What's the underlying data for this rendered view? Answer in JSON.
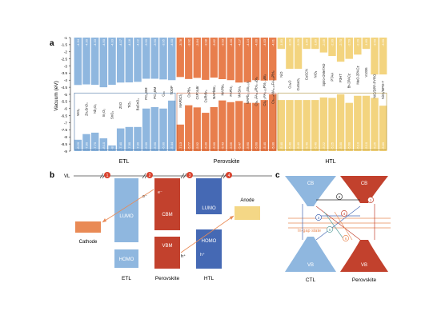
{
  "panel_a": {
    "letter": "a",
    "y_axis_label": "Vacuum (eV)",
    "y_ticks": [
      "-1",
      "-1.5",
      "-2",
      "-2.5",
      "-3",
      "-3.5",
      "-4",
      "-4.5",
      "-5",
      "-5.5",
      "-6",
      "-6.5",
      "-7",
      "-7.5",
      "-8",
      "-8.5",
      "-9"
    ],
    "group_labels": {
      "etl": "ETL",
      "perovskite": "Perovskite",
      "htl": "HTL"
    },
    "colors": {
      "etl": "#8fb7df",
      "perovskite": "#e87e4d",
      "htl": "#f3d47f",
      "etl_text": "#2b5d95",
      "per_text": "#b4441a",
      "htl_text": "#9c7a14"
    }
  },
  "chart_data": {
    "type": "bar",
    "title": "",
    "ylabel": "Vacuum (eV)",
    "ylim": [
      -9,
      -1
    ],
    "groups": [
      {
        "name": "ETL",
        "materials": [
          "WOₓ",
          "Zn₂SnO₄",
          "Nb₂O₅",
          "In₂O₃",
          "SnO₂",
          "ZnO",
          "TiO₂",
          "BaSnO₃",
          "PC₆₁BM",
          "PC₇₁BM",
          "C₆₀",
          "TDDP"
        ],
        "top_levels": [
          -4.34,
          -4.3,
          -4.33,
          -4.5,
          -4.33,
          -4.17,
          -4.16,
          -4.12,
          -3.9,
          -3.9,
          -3.95,
          -4.0
        ],
        "bottom_levels": [
          -8.2,
          -7.8,
          -7.7,
          -8.1,
          -8.6,
          -7.4,
          -7.3,
          -7.3,
          -6.0,
          -5.9,
          -6.0,
          -5.44
        ]
      },
      {
        "name": "Perovskite",
        "materials": [
          "MAPbCl₃",
          "CsPbI₃",
          "CsPbI₂Br",
          "CsPbBr₃",
          "MAPbBr₃",
          "MAPbI₃",
          "FAPbI₃",
          "MASnI₃",
          "MAPb₀.₅Sn₀.₅I₃",
          "Cs₀.₁FA₀.₉PbI₃₋ₓBrₓ",
          "Cs₀.₁₇FA₀.₈₃PbI₃₋ₓBrₓ",
          "Cs₀.₀₅MA₀.₁₅FA₀.₈PbI₃"
        ],
        "top_levels": [
          -3.78,
          -3.92,
          -3.84,
          -3.98,
          -3.82,
          -3.93,
          -4.0,
          -4.17,
          -4.14,
          -4.0,
          -4.03,
          -4.01
        ],
        "bottom_levels": [
          -7.13,
          -5.77,
          -5.92,
          -6.3,
          -5.9,
          -5.43,
          -5.55,
          -5.47,
          -5.6,
          -5.6,
          -5.4,
          -5.0
        ]
      },
      {
        "name": "HTL",
        "materials": [
          "NiO",
          "Cu₂O",
          "CuGaO₂",
          "CuSCN",
          "NiOₓ",
          "Spiro-OMeTAD",
          "PTAA",
          "P3HT",
          "Br-2PACz",
          "MeO-2PACz",
          "V1036",
          "NiO/DPP-PYRO",
          "NiOₓ/MPD-7"
        ],
        "top_levels": [
          -1.8,
          -3.2,
          -3.2,
          -1.8,
          -1.8,
          -2.05,
          -2.3,
          -2.7,
          -2.5,
          -2.2,
          -1.8,
          -3.6,
          -3.6
        ],
        "bottom_levels": [
          -5.4,
          -5.4,
          -5.4,
          -5.4,
          -5.4,
          -5.22,
          -5.25,
          -5.0,
          -5.6,
          -5.1,
          -5.1,
          -5.25,
          -5.8
        ]
      }
    ]
  },
  "panel_b": {
    "letter": "b",
    "vl_label": "VL",
    "cathode_label": "Cathode",
    "anode_label": "Anode",
    "lumo_label": "LUMO",
    "homo_label": "HOMO",
    "cbm_label": "CBM",
    "vbm_label": "VBM",
    "etl_label": "ETL",
    "perovskite_label": "Perovskite",
    "htl_label": "HTL",
    "electron": "e⁻",
    "hole": "h⁺",
    "markers": [
      "1",
      "2",
      "3",
      "4"
    ]
  },
  "panel_c": {
    "letter": "c",
    "cb_label": "CB",
    "vb_label": "VB",
    "ctl_label": "CTL",
    "perovskite_label": "Perovskite",
    "in_gap_label": "In-gap state",
    "markers": [
      "1",
      "2",
      "3",
      "4",
      "5",
      "6"
    ]
  }
}
